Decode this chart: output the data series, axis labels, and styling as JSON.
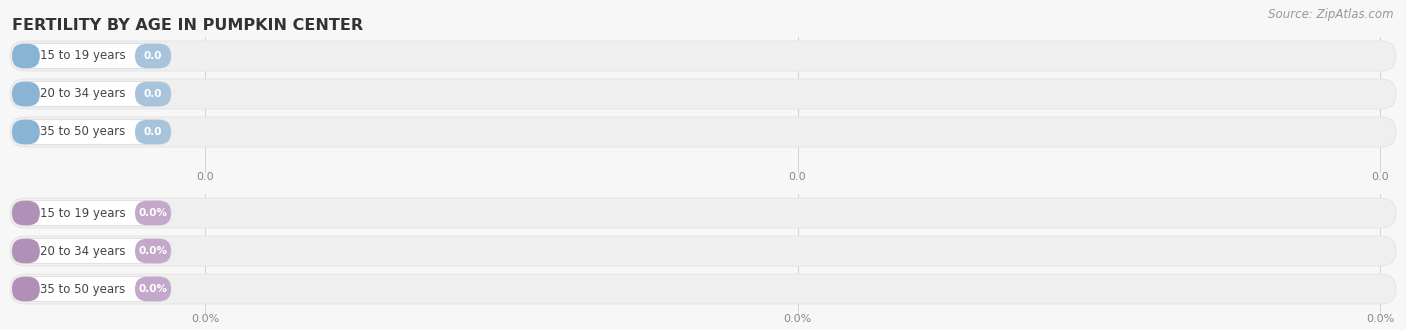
{
  "title": "Fertility by Age in Pumpkin Center",
  "source_text": "Source: ZipAtlas.com",
  "top_section": {
    "categories": [
      "15 to 19 years",
      "20 to 34 years",
      "35 to 50 years"
    ],
    "values": [
      0.0,
      0.0,
      0.0
    ],
    "bar_bg_color": "#e8eef5",
    "left_cap_color": "#8ab4d4",
    "right_pill_color": "#a8c4dc",
    "right_pill_text_color": "#ffffff",
    "label_text_color": "#444444",
    "value_labels": [
      "0.0",
      "0.0",
      "0.0"
    ],
    "axis_ticks": [
      "0.0",
      "0.0",
      "0.0"
    ]
  },
  "bottom_section": {
    "categories": [
      "15 to 19 years",
      "20 to 34 years",
      "35 to 50 years"
    ],
    "values": [
      0.0,
      0.0,
      0.0
    ],
    "bar_bg_color": "#ede8f0",
    "left_cap_color": "#b090b8",
    "right_pill_color": "#c4a8cc",
    "right_pill_text_color": "#ffffff",
    "label_text_color": "#444444",
    "value_labels": [
      "0.0%",
      "0.0%",
      "0.0%"
    ],
    "axis_ticks": [
      "0.0%",
      "0.0%",
      "0.0%"
    ]
  },
  "bg_color": "#f7f7f7",
  "title_color": "#333333",
  "title_fontsize": 11.5,
  "source_color": "#999999",
  "source_fontsize": 8.5,
  "tick_color": "#888888",
  "tick_fontsize": 8
}
